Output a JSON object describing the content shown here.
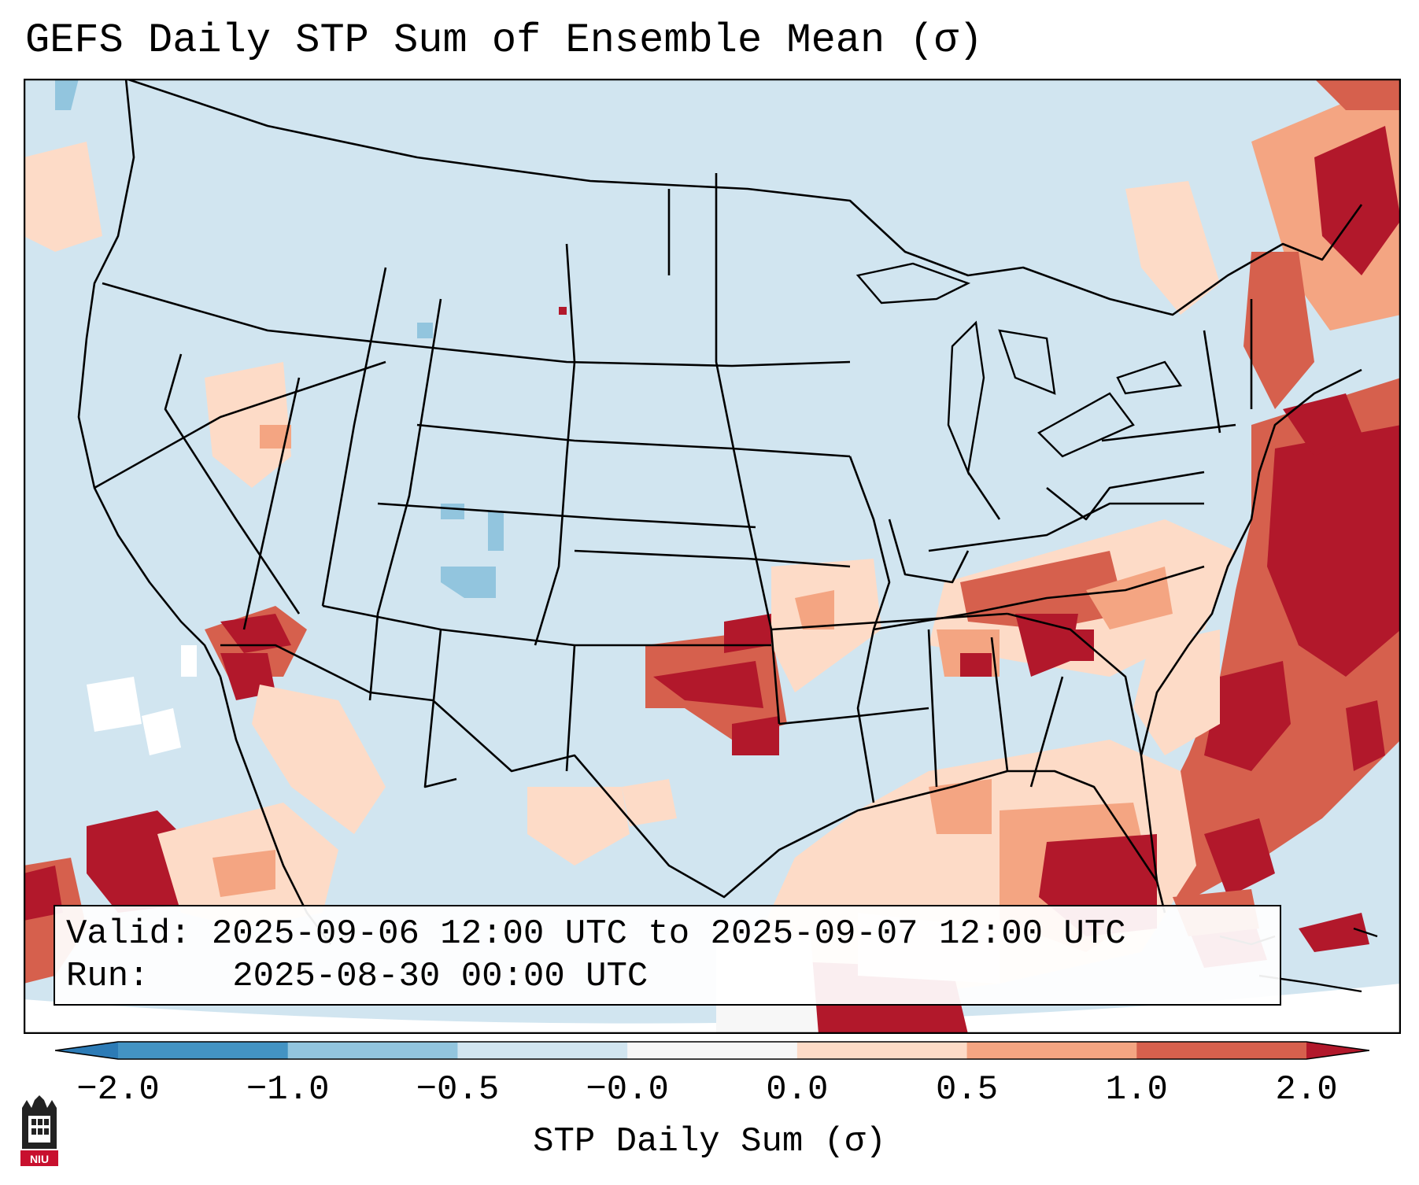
{
  "title": "GEFS Daily STP Sum of Ensemble Mean (σ)",
  "info": {
    "valid_label": "Valid:",
    "valid_value": "2025-09-06 12:00 UTC to 2025-09-07 12:00 UTC",
    "run_label": "Run:",
    "run_value": "2025-08-30 00:00 UTC"
  },
  "colorbar": {
    "label": "STP Daily Sum (σ)",
    "ticks": [
      "−2.0",
      "−1.0",
      "−0.5",
      "−0.0",
      "0.0",
      "0.5",
      "1.0",
      "2.0"
    ],
    "colors": [
      "#2c7bb6",
      "#4393c3",
      "#92c5de",
      "#d1e5f0",
      "#f7f7f7",
      "#fddbc7",
      "#f4a582",
      "#d6604d",
      "#b2182b"
    ]
  },
  "legend_bins": [
    {
      "range": "< −2.0",
      "color": "#2c7bb6"
    },
    {
      "range": "−2.0 to −1.0",
      "color": "#4393c3"
    },
    {
      "range": "−1.0 to −0.5",
      "color": "#92c5de"
    },
    {
      "range": "−0.5 to −0.0",
      "color": "#d1e5f0"
    },
    {
      "range": "−0.0 to 0.0",
      "color": "#f7f7f7"
    },
    {
      "range": "0.0 to 0.5",
      "color": "#fddbc7"
    },
    {
      "range": "0.5 to 1.0",
      "color": "#f4a582"
    },
    {
      "range": "1.0 to 2.0",
      "color": "#d6604d"
    },
    {
      "range": "> 2.0",
      "color": "#b2182b"
    }
  ],
  "logo": {
    "text": "NIU"
  }
}
